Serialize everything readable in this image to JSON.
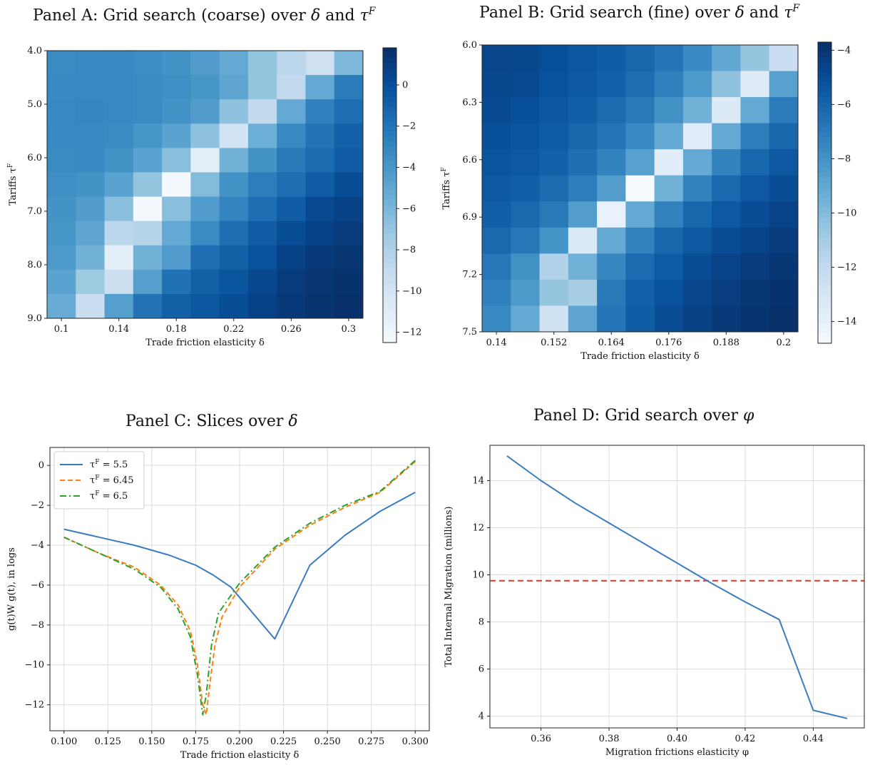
{
  "panels": {
    "A": {
      "title_prefix": "Panel A: Grid search (coarse) over ",
      "title_delta": "δ",
      "title_and": " and ",
      "title_tau": "τ",
      "title_sup": "F"
    },
    "B": {
      "title_prefix": "Panel B: Grid search (fine) over ",
      "title_delta": "δ",
      "title_and": " and ",
      "title_tau": "τ",
      "title_sup": "F"
    },
    "C": {
      "title_prefix": "Panel C: Slices over ",
      "title_delta": "δ"
    },
    "D": {
      "title_prefix": "Panel D: Grid search over ",
      "title_phi": "φ"
    }
  },
  "colors": {
    "line_blue": "#3a7cc0",
    "line_orange": "#ff7f0e",
    "line_green": "#2ca02c",
    "red_dashed": "#e8342b",
    "colormap": "Blues"
  },
  "chart_data": [
    {
      "id": "A",
      "type": "heatmap",
      "xlabel": "Trade friction elasticity δ",
      "ylabel": "Tariffs τ^F",
      "x_ticks": [
        "0.1",
        "0.14",
        "0.18",
        "0.22",
        "0.26",
        "0.3"
      ],
      "y_ticks": [
        "4.0",
        "5.0",
        "6.0",
        "7.0",
        "8.0",
        "9.0"
      ],
      "x_range": [
        0.1,
        0.3
      ],
      "y_range": [
        4.0,
        9.0
      ],
      "color_range": [
        -12.5,
        1.8
      ],
      "colorbar_ticks": [
        0,
        -2,
        -4,
        -6,
        -8,
        -10,
        -12
      ],
      "values": [
        [
          -3.2,
          -3.0,
          -3.1,
          -3.3,
          -3.6,
          -4.2,
          -5.0,
          -6.8,
          -8.5,
          -9.5,
          -6.0
        ],
        [
          -3.1,
          -3.0,
          -3.0,
          -3.2,
          -3.4,
          -3.8,
          -4.8,
          -6.8,
          -8.8,
          -5.0,
          -2.3
        ],
        [
          -3.0,
          -2.9,
          -3.0,
          -3.2,
          -3.6,
          -4.2,
          -6.6,
          -8.8,
          -5.0,
          -2.6,
          -1.6
        ],
        [
          -3.1,
          -3.0,
          -3.2,
          -3.8,
          -4.6,
          -6.6,
          -9.8,
          -5.4,
          -3.0,
          -1.9,
          -0.9
        ],
        [
          -3.2,
          -3.1,
          -3.6,
          -4.6,
          -6.4,
          -11.0,
          -5.6,
          -3.6,
          -2.2,
          -1.4,
          -0.6
        ],
        [
          -3.4,
          -3.6,
          -4.6,
          -6.8,
          -12.3,
          -6.2,
          -3.6,
          -2.4,
          -1.6,
          -0.6,
          0.2
        ],
        [
          -3.6,
          -4.2,
          -6.4,
          -12.3,
          -6.4,
          -4.2,
          -2.8,
          -1.6,
          -0.6,
          0.4,
          0.8
        ],
        [
          -3.8,
          -4.8,
          -8.5,
          -8.2,
          -5.0,
          -3.2,
          -1.6,
          -0.6,
          0.2,
          0.8,
          1.2
        ],
        [
          -4.0,
          -5.6,
          -11.2,
          -5.6,
          -4.2,
          -1.6,
          -0.8,
          0.0,
          0.8,
          1.3,
          1.5
        ],
        [
          -4.6,
          -7.2,
          -9.4,
          -4.4,
          -1.8,
          -0.8,
          -0.2,
          0.5,
          1.2,
          1.5,
          1.7
        ],
        [
          -5.2,
          -9.3,
          -4.4,
          -1.9,
          -0.8,
          -0.3,
          0.2,
          0.8,
          1.3,
          1.6,
          1.8
        ]
      ]
    },
    {
      "id": "B",
      "type": "heatmap",
      "xlabel": "Trade friction elasticity δ",
      "ylabel": "Tariffs τ^F",
      "x_ticks": [
        "0.14",
        "0.152",
        "0.164",
        "0.176",
        "0.188",
        "0.2"
      ],
      "y_ticks": [
        "6.0",
        "6.3",
        "6.6",
        "6.9",
        "7.2",
        "7.5"
      ],
      "x_range": [
        0.14,
        0.2
      ],
      "y_range": [
        6.0,
        7.5
      ],
      "color_range": [
        -14.8,
        -3.7
      ],
      "colorbar_ticks": [
        -4,
        -6,
        -8,
        -10,
        -12,
        -14
      ],
      "values": [
        [
          -4.6,
          -4.7,
          -5.0,
          -5.3,
          -5.6,
          -6.0,
          -6.6,
          -7.5,
          -8.9,
          -10.4,
          -12.3
        ],
        [
          -4.7,
          -4.8,
          -5.1,
          -5.4,
          -5.8,
          -6.3,
          -7.1,
          -8.2,
          -10.2,
          -13.4,
          -8.6
        ],
        [
          -4.8,
          -5.0,
          -5.3,
          -5.7,
          -6.2,
          -6.8,
          -7.8,
          -9.4,
          -13.3,
          -9.0,
          -6.9
        ],
        [
          -5.0,
          -5.2,
          -5.5,
          -6.0,
          -6.6,
          -7.5,
          -9.0,
          -13.5,
          -9.0,
          -7.0,
          -6.0
        ],
        [
          -5.2,
          -5.4,
          -5.8,
          -6.4,
          -7.2,
          -8.6,
          -13.6,
          -9.0,
          -7.2,
          -6.0,
          -5.4
        ],
        [
          -5.4,
          -5.7,
          -6.2,
          -7.0,
          -8.4,
          -14.7,
          -9.4,
          -7.2,
          -6.1,
          -5.4,
          -4.9
        ],
        [
          -5.7,
          -6.1,
          -6.8,
          -8.4,
          -14.0,
          -9.0,
          -7.2,
          -6.0,
          -5.4,
          -4.9,
          -4.5
        ],
        [
          -6.1,
          -6.7,
          -8.0,
          -13.2,
          -9.0,
          -7.2,
          -6.0,
          -5.4,
          -4.9,
          -4.5,
          -4.2
        ],
        [
          -6.7,
          -7.8,
          -11.3,
          -9.4,
          -7.4,
          -6.2,
          -5.5,
          -4.9,
          -4.5,
          -4.2,
          -4.0
        ],
        [
          -7.1,
          -8.2,
          -10.4,
          -11.0,
          -6.8,
          -5.8,
          -5.1,
          -4.6,
          -4.3,
          -4.0,
          -3.8
        ],
        [
          -7.5,
          -9.0,
          -12.6,
          -8.8,
          -6.6,
          -5.6,
          -4.9,
          -4.4,
          -4.1,
          -3.9,
          -3.7
        ]
      ]
    },
    {
      "id": "C",
      "type": "line",
      "xlabel": "Trade friction elasticity δ",
      "ylabel": "g(t)W g(t), in logs",
      "xlim": [
        0.092,
        0.308
      ],
      "ylim": [
        -13.3,
        0.9
      ],
      "x_ticks": [
        "0.100",
        "0.125",
        "0.150",
        "0.175",
        "0.200",
        "0.225",
        "0.250",
        "0.275",
        "0.300"
      ],
      "y_ticks": [
        "0",
        "−2",
        "−4",
        "−6",
        "−8",
        "−10",
        "−12"
      ],
      "grid": true,
      "legend_position": "top-left",
      "series": [
        {
          "name": "τ^F = 5.5",
          "style": "solid",
          "color": "#3a7cc0",
          "points": [
            [
              0.1,
              -3.2
            ],
            [
              0.12,
              -3.6
            ],
            [
              0.14,
              -4.0
            ],
            [
              0.16,
              -4.5
            ],
            [
              0.175,
              -5.0
            ],
            [
              0.185,
              -5.5
            ],
            [
              0.195,
              -6.1
            ],
            [
              0.22,
              -8.7
            ],
            [
              0.24,
              -5.0
            ],
            [
              0.26,
              -3.5
            ],
            [
              0.28,
              -2.3
            ],
            [
              0.3,
              -1.35
            ]
          ]
        },
        {
          "name": "τ^F = 6.45",
          "style": "dashed",
          "color": "#ff7f0e",
          "points": [
            [
              0.1,
              -3.6
            ],
            [
              0.12,
              -4.4
            ],
            [
              0.14,
              -5.1
            ],
            [
              0.155,
              -6.0
            ],
            [
              0.165,
              -7.0
            ],
            [
              0.172,
              -8.3
            ],
            [
              0.176,
              -10.0
            ],
            [
              0.179,
              -12.0
            ],
            [
              0.181,
              -12.5
            ],
            [
              0.183,
              -11.0
            ],
            [
              0.186,
              -9.0
            ],
            [
              0.19,
              -7.6
            ],
            [
              0.2,
              -6.1
            ],
            [
              0.22,
              -4.2
            ],
            [
              0.24,
              -3.0
            ],
            [
              0.26,
              -2.1
            ],
            [
              0.28,
              -1.35
            ],
            [
              0.3,
              0.2
            ]
          ]
        },
        {
          "name": "τ^F = 6.5",
          "style": "dashdot",
          "color": "#2ca02c",
          "points": [
            [
              0.1,
              -3.6
            ],
            [
              0.12,
              -4.4
            ],
            [
              0.14,
              -5.2
            ],
            [
              0.155,
              -6.1
            ],
            [
              0.165,
              -7.2
            ],
            [
              0.172,
              -8.6
            ],
            [
              0.176,
              -10.5
            ],
            [
              0.179,
              -12.5
            ],
            [
              0.181,
              -11.5
            ],
            [
              0.184,
              -9.0
            ],
            [
              0.188,
              -7.4
            ],
            [
              0.2,
              -5.9
            ],
            [
              0.22,
              -4.1
            ],
            [
              0.24,
              -2.9
            ],
            [
              0.26,
              -2.0
            ],
            [
              0.28,
              -1.3
            ],
            [
              0.3,
              0.25
            ]
          ]
        }
      ]
    },
    {
      "id": "D",
      "type": "line",
      "xlabel": "Migration frictions elasticity φ",
      "ylabel": "Total Internal Migration (millions)",
      "xlim": [
        0.345,
        0.455
      ],
      "ylim": [
        3.5,
        15.5
      ],
      "x_ticks": [
        "0.36",
        "0.38",
        "0.40",
        "0.42",
        "0.44"
      ],
      "y_ticks": [
        "4",
        "6",
        "8",
        "10",
        "12",
        "14"
      ],
      "grid": true,
      "series": [
        {
          "name": "",
          "style": "solid",
          "color": "#3a7cc0",
          "points": [
            [
              0.35,
              15.05
            ],
            [
              0.36,
              14.0
            ],
            [
              0.37,
              13.05
            ],
            [
              0.38,
              12.2
            ],
            [
              0.39,
              11.35
            ],
            [
              0.4,
              10.5
            ],
            [
              0.41,
              9.65
            ],
            [
              0.42,
              8.85
            ],
            [
              0.43,
              8.1
            ],
            [
              0.44,
              4.25
            ],
            [
              0.45,
              3.9
            ]
          ]
        }
      ],
      "hline": {
        "y": 9.75,
        "style": "dashed",
        "color": "#e8342b"
      }
    }
  ]
}
